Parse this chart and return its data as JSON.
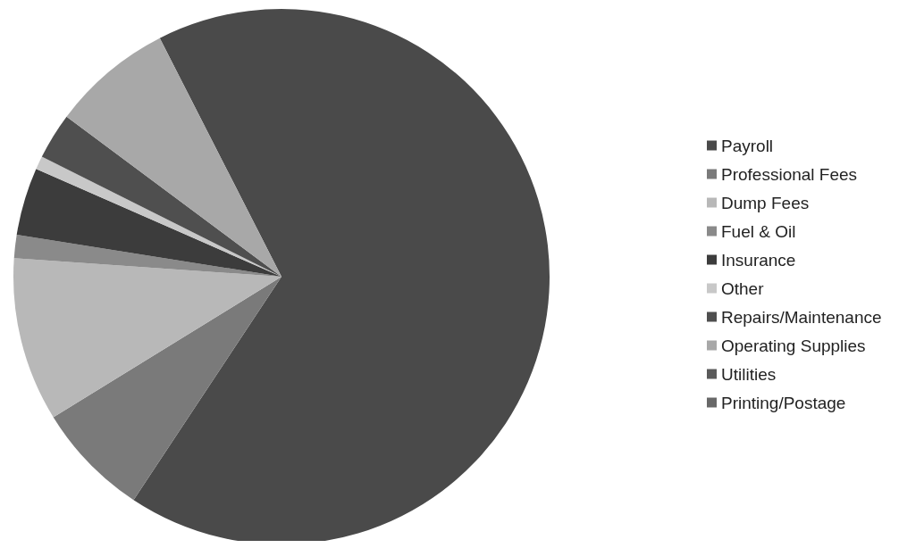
{
  "chart_data": {
    "type": "pie",
    "categories": [
      "Payroll",
      "Professional Fees",
      "Dump Fees",
      "Fuel & Oil",
      "Insurance",
      "Other",
      "Repairs/Maintenance",
      "Operating Supplies",
      "Utilities",
      "Printing/Postage"
    ],
    "values": [
      66.8,
      6.9,
      9.9,
      1.4,
      4.1,
      0.8,
      2.8,
      7.3,
      0,
      0
    ],
    "colors": [
      "#4a4a4a",
      "#7a7a7a",
      "#b8b8b8",
      "#8a8a8a",
      "#3c3c3c",
      "#c8c8c8",
      "#4f4f4f",
      "#a8a8a8",
      "#5a5a5a",
      "#686868"
    ],
    "legend": "right"
  }
}
